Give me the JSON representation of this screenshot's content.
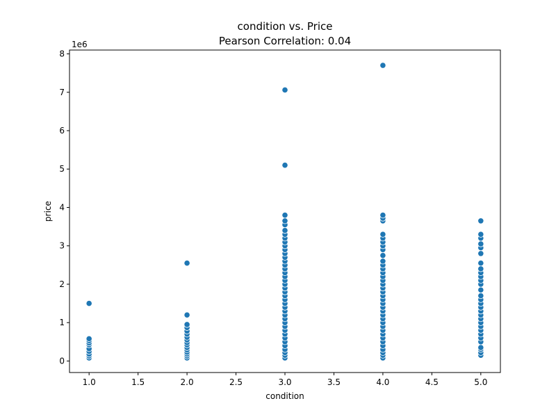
{
  "chart_data": {
    "type": "scatter",
    "title": "condition vs. Price",
    "subtitle": "Pearson Correlation: 0.04",
    "xlabel": "condition",
    "ylabel": "price",
    "y_offset_label": "1e6",
    "xlim": [
      0.8,
      5.2
    ],
    "ylim": [
      -300000,
      8100000
    ],
    "x_ticks": [
      1.0,
      1.5,
      2.0,
      2.5,
      3.0,
      3.5,
      4.0,
      4.5,
      5.0
    ],
    "x_tick_labels": [
      "1.0",
      "1.5",
      "2.0",
      "2.5",
      "3.0",
      "3.5",
      "4.0",
      "4.5",
      "5.0"
    ],
    "y_ticks": [
      0,
      1000000,
      2000000,
      3000000,
      4000000,
      5000000,
      6000000,
      7000000,
      8000000
    ],
    "y_tick_labels": [
      "0",
      "1",
      "2",
      "3",
      "4",
      "5",
      "6",
      "7",
      "8"
    ],
    "grid": false,
    "marker_color": "#1f77b4",
    "points": [
      {
        "x": 1,
        "y": 80000
      },
      {
        "x": 1,
        "y": 130000
      },
      {
        "x": 1,
        "y": 180000
      },
      {
        "x": 1,
        "y": 250000
      },
      {
        "x": 1,
        "y": 320000
      },
      {
        "x": 1,
        "y": 420000
      },
      {
        "x": 1,
        "y": 470000
      },
      {
        "x": 1,
        "y": 530000
      },
      {
        "x": 1,
        "y": 580000
      },
      {
        "x": 1,
        "y": 1500000
      },
      {
        "x": 2,
        "y": 80000
      },
      {
        "x": 2,
        "y": 130000
      },
      {
        "x": 2,
        "y": 180000
      },
      {
        "x": 2,
        "y": 230000
      },
      {
        "x": 2,
        "y": 290000
      },
      {
        "x": 2,
        "y": 350000
      },
      {
        "x": 2,
        "y": 420000
      },
      {
        "x": 2,
        "y": 480000
      },
      {
        "x": 2,
        "y": 550000
      },
      {
        "x": 2,
        "y": 620000
      },
      {
        "x": 2,
        "y": 700000
      },
      {
        "x": 2,
        "y": 780000
      },
      {
        "x": 2,
        "y": 870000
      },
      {
        "x": 2,
        "y": 950000
      },
      {
        "x": 2,
        "y": 1200000
      },
      {
        "x": 2,
        "y": 2550000
      },
      {
        "x": 3,
        "y": 80000
      },
      {
        "x": 3,
        "y": 150000
      },
      {
        "x": 3,
        "y": 220000
      },
      {
        "x": 3,
        "y": 300000
      },
      {
        "x": 3,
        "y": 400000
      },
      {
        "x": 3,
        "y": 500000
      },
      {
        "x": 3,
        "y": 600000
      },
      {
        "x": 3,
        "y": 700000
      },
      {
        "x": 3,
        "y": 800000
      },
      {
        "x": 3,
        "y": 900000
      },
      {
        "x": 3,
        "y": 1000000
      },
      {
        "x": 3,
        "y": 1100000
      },
      {
        "x": 3,
        "y": 1200000
      },
      {
        "x": 3,
        "y": 1300000
      },
      {
        "x": 3,
        "y": 1400000
      },
      {
        "x": 3,
        "y": 1500000
      },
      {
        "x": 3,
        "y": 1600000
      },
      {
        "x": 3,
        "y": 1700000
      },
      {
        "x": 3,
        "y": 1800000
      },
      {
        "x": 3,
        "y": 1900000
      },
      {
        "x": 3,
        "y": 2000000
      },
      {
        "x": 3,
        "y": 2100000
      },
      {
        "x": 3,
        "y": 2200000
      },
      {
        "x": 3,
        "y": 2300000
      },
      {
        "x": 3,
        "y": 2400000
      },
      {
        "x": 3,
        "y": 2500000
      },
      {
        "x": 3,
        "y": 2600000
      },
      {
        "x": 3,
        "y": 2700000
      },
      {
        "x": 3,
        "y": 2800000
      },
      {
        "x": 3,
        "y": 2900000
      },
      {
        "x": 3,
        "y": 3000000
      },
      {
        "x": 3,
        "y": 3100000
      },
      {
        "x": 3,
        "y": 3200000
      },
      {
        "x": 3,
        "y": 3300000
      },
      {
        "x": 3,
        "y": 3400000
      },
      {
        "x": 3,
        "y": 3550000
      },
      {
        "x": 3,
        "y": 3650000
      },
      {
        "x": 3,
        "y": 3800000
      },
      {
        "x": 3,
        "y": 5100000
      },
      {
        "x": 3,
        "y": 7060000
      },
      {
        "x": 4,
        "y": 80000
      },
      {
        "x": 4,
        "y": 150000
      },
      {
        "x": 4,
        "y": 220000
      },
      {
        "x": 4,
        "y": 300000
      },
      {
        "x": 4,
        "y": 400000
      },
      {
        "x": 4,
        "y": 500000
      },
      {
        "x": 4,
        "y": 600000
      },
      {
        "x": 4,
        "y": 700000
      },
      {
        "x": 4,
        "y": 800000
      },
      {
        "x": 4,
        "y": 900000
      },
      {
        "x": 4,
        "y": 1000000
      },
      {
        "x": 4,
        "y": 1100000
      },
      {
        "x": 4,
        "y": 1200000
      },
      {
        "x": 4,
        "y": 1300000
      },
      {
        "x": 4,
        "y": 1400000
      },
      {
        "x": 4,
        "y": 1500000
      },
      {
        "x": 4,
        "y": 1600000
      },
      {
        "x": 4,
        "y": 1700000
      },
      {
        "x": 4,
        "y": 1800000
      },
      {
        "x": 4,
        "y": 1900000
      },
      {
        "x": 4,
        "y": 2000000
      },
      {
        "x": 4,
        "y": 2100000
      },
      {
        "x": 4,
        "y": 2200000
      },
      {
        "x": 4,
        "y": 2300000
      },
      {
        "x": 4,
        "y": 2400000
      },
      {
        "x": 4,
        "y": 2500000
      },
      {
        "x": 4,
        "y": 2600000
      },
      {
        "x": 4,
        "y": 2750000
      },
      {
        "x": 4,
        "y": 2900000
      },
      {
        "x": 4,
        "y": 3000000
      },
      {
        "x": 4,
        "y": 3100000
      },
      {
        "x": 4,
        "y": 3200000
      },
      {
        "x": 4,
        "y": 3300000
      },
      {
        "x": 4,
        "y": 3650000
      },
      {
        "x": 4,
        "y": 3720000
      },
      {
        "x": 4,
        "y": 3800000
      },
      {
        "x": 4,
        "y": 7700000
      },
      {
        "x": 5,
        "y": 150000
      },
      {
        "x": 5,
        "y": 220000
      },
      {
        "x": 5,
        "y": 300000
      },
      {
        "x": 5,
        "y": 350000
      },
      {
        "x": 5,
        "y": 500000
      },
      {
        "x": 5,
        "y": 600000
      },
      {
        "x": 5,
        "y": 700000
      },
      {
        "x": 5,
        "y": 800000
      },
      {
        "x": 5,
        "y": 900000
      },
      {
        "x": 5,
        "y": 1000000
      },
      {
        "x": 5,
        "y": 1100000
      },
      {
        "x": 5,
        "y": 1200000
      },
      {
        "x": 5,
        "y": 1300000
      },
      {
        "x": 5,
        "y": 1400000
      },
      {
        "x": 5,
        "y": 1500000
      },
      {
        "x": 5,
        "y": 1600000
      },
      {
        "x": 5,
        "y": 1700000
      },
      {
        "x": 5,
        "y": 1850000
      },
      {
        "x": 5,
        "y": 2000000
      },
      {
        "x": 5,
        "y": 2100000
      },
      {
        "x": 5,
        "y": 2200000
      },
      {
        "x": 5,
        "y": 2300000
      },
      {
        "x": 5,
        "y": 2400000
      },
      {
        "x": 5,
        "y": 2550000
      },
      {
        "x": 5,
        "y": 2800000
      },
      {
        "x": 5,
        "y": 2950000
      },
      {
        "x": 5,
        "y": 3050000
      },
      {
        "x": 5,
        "y": 3200000
      },
      {
        "x": 5,
        "y": 3300000
      },
      {
        "x": 5,
        "y": 3650000
      }
    ]
  }
}
